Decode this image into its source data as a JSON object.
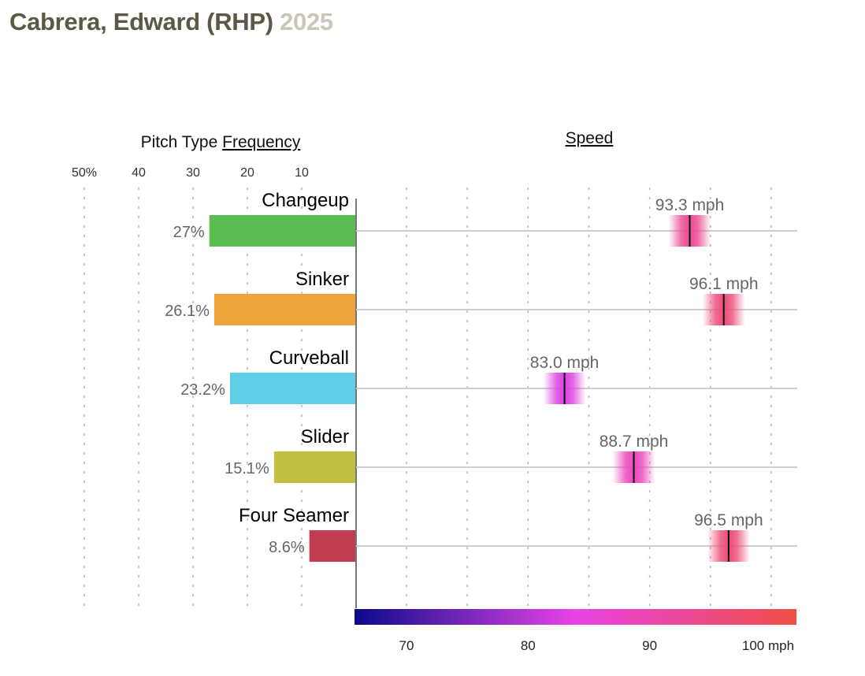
{
  "header": {
    "player": "Cabrera, Edward (RHP)",
    "year": "2025"
  },
  "chart_data": [
    {
      "type": "bar",
      "orientation": "horizontal-leftward",
      "title_prefix": "Pitch Type",
      "title_link": "Frequency",
      "categories": [
        "Changeup",
        "Sinker",
        "Curveball",
        "Slider",
        "Four Seamer"
      ],
      "values": [
        27.0,
        26.1,
        23.2,
        15.1,
        8.6
      ],
      "value_labels": [
        "27%",
        "26.1%",
        "23.2%",
        "15.1%",
        "8.6%"
      ],
      "colors": [
        "#5bbd51",
        "#efa33b",
        "#5fcfe8",
        "#c2be42",
        "#c23c4f"
      ],
      "tick_values": [
        50,
        40,
        30,
        20,
        10
      ],
      "tick_labels": [
        "50%",
        "40",
        "30",
        "20",
        "10"
      ],
      "xlim": [
        0,
        50
      ],
      "grid": true
    },
    {
      "type": "scatter",
      "title": "Speed",
      "categories": [
        "Changeup",
        "Sinker",
        "Curveball",
        "Slider",
        "Four Seamer"
      ],
      "values": [
        93.3,
        96.1,
        83.0,
        88.7,
        96.5
      ],
      "value_labels": [
        "93.3 mph",
        "96.1 mph",
        "83.0 mph",
        "88.7 mph",
        "96.5 mph"
      ],
      "tick_values": [
        70,
        80,
        90,
        100
      ],
      "tick_labels": [
        "70",
        "80",
        "90",
        "100 mph"
      ],
      "minor_grid_step": 5,
      "xlim": [
        66,
        102
      ],
      "color_scale": {
        "stops": [
          66,
          84,
          102
        ],
        "colors": [
          "#0a0a8c",
          "#e843e6",
          "#ee4f44"
        ]
      },
      "grid": true
    }
  ]
}
